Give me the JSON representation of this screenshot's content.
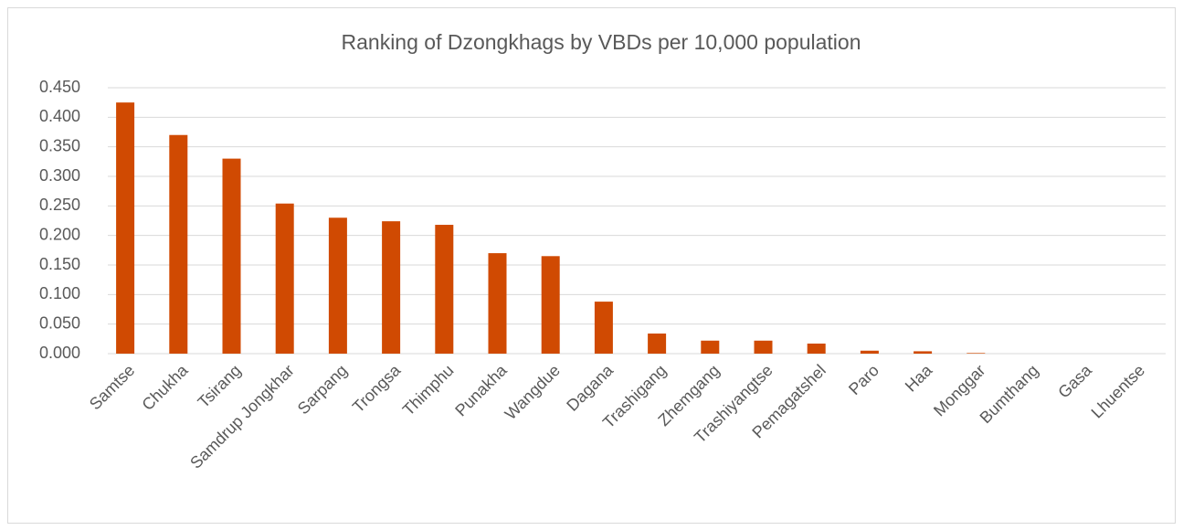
{
  "chart_data": {
    "type": "bar",
    "title": "Ranking of Dzongkhags by VBDs per 10,000 population",
    "categories": [
      "Samtse",
      "Chukha",
      "Tsirang",
      "Samdrup Jongkhar",
      "Sarpang",
      "Trongsa",
      "Thimphu",
      "Punakha",
      "Wangdue",
      "Dagana",
      "Trashigang",
      "Zhemgang",
      "Trashiyangtse",
      "Pemagatshel",
      "Paro",
      "Haa",
      "Monggar",
      "Bumthang",
      "Gasa",
      "Lhuentse"
    ],
    "values": [
      0.425,
      0.37,
      0.33,
      0.254,
      0.23,
      0.224,
      0.218,
      0.17,
      0.165,
      0.088,
      0.034,
      0.022,
      0.022,
      0.017,
      0.005,
      0.004,
      0.001,
      0,
      0,
      0
    ],
    "color": "#d04a02",
    "ylim": [
      0,
      0.45
    ],
    "yticks": [
      {
        "value": 0,
        "label": "0.000"
      },
      {
        "value": 0.05,
        "label": "0.050"
      },
      {
        "value": 0.1,
        "label": "0.100"
      },
      {
        "value": 0.15,
        "label": "0.150"
      },
      {
        "value": 0.2,
        "label": "0.200"
      },
      {
        "value": 0.25,
        "label": "0.250"
      },
      {
        "value": 0.3,
        "label": "0.300"
      },
      {
        "value": 0.35,
        "label": "0.350"
      },
      {
        "value": 0.4,
        "label": "0.400"
      },
      {
        "value": 0.45,
        "label": "0.450"
      }
    ],
    "grid": true
  }
}
